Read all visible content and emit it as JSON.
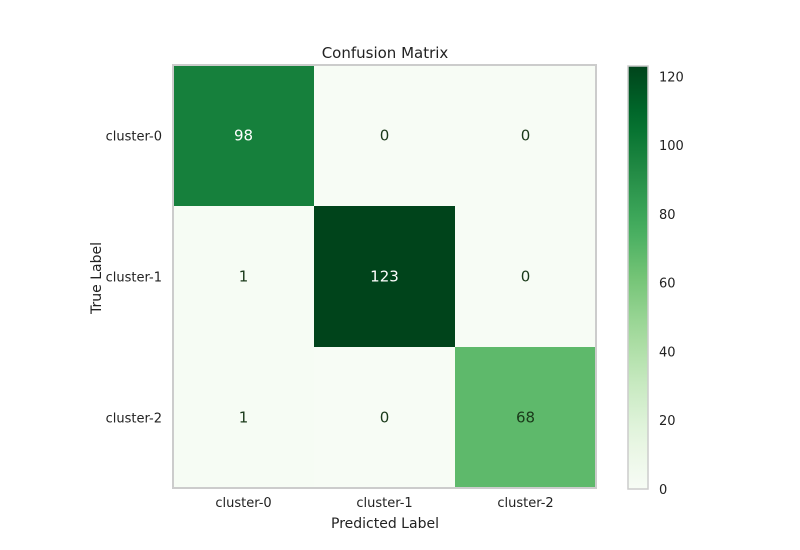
{
  "chart_data": {
    "type": "heatmap",
    "title": "Confusion Matrix",
    "xlabel": "Predicted Label",
    "ylabel": "True Label",
    "x_categories": [
      "cluster-0",
      "cluster-1",
      "cluster-2"
    ],
    "y_categories": [
      "cluster-0",
      "cluster-1",
      "cluster-2"
    ],
    "values": [
      [
        98,
        0,
        0
      ],
      [
        1,
        123,
        0
      ],
      [
        1,
        0,
        68
      ]
    ],
    "colorbar": {
      "min": 0,
      "max": 123,
      "ticks": [
        0,
        20,
        40,
        60,
        80,
        100,
        120
      ],
      "colormap": "Greens"
    },
    "colors": {
      "low": "#f7fcf5",
      "high": "#00441b"
    }
  }
}
